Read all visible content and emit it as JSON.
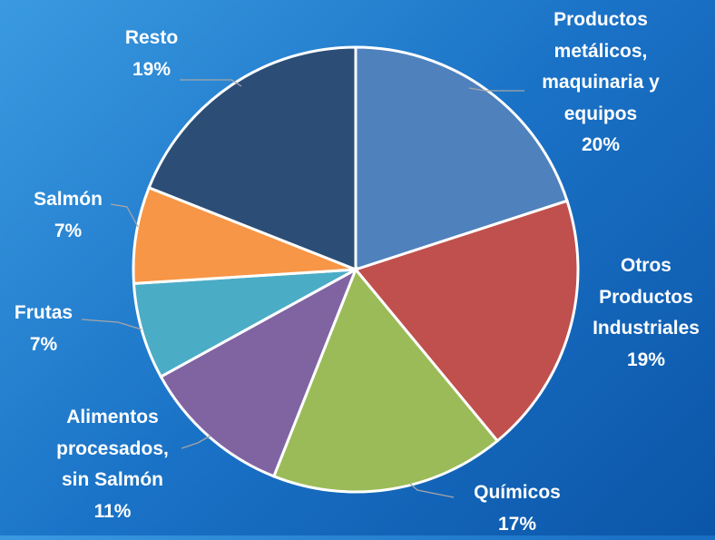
{
  "chart_data": {
    "type": "pie",
    "categories": [
      "Productos metálicos, maquinaria y equipos",
      "Otros Productos Industriales",
      "Químicos",
      "Alimentos procesados, sin Salmón",
      "Frutas",
      "Salmón",
      "Resto"
    ],
    "values": [
      20,
      19,
      17,
      11,
      7,
      7,
      19
    ],
    "value_labels": [
      "20%",
      "19%",
      "17%",
      "11%",
      "7%",
      "7%",
      "19%"
    ],
    "colors": [
      "#4f81bd",
      "#c0504d",
      "#9bbb59",
      "#8064a2",
      "#4bacc6",
      "#f79646",
      "#2c4d75"
    ]
  }
}
